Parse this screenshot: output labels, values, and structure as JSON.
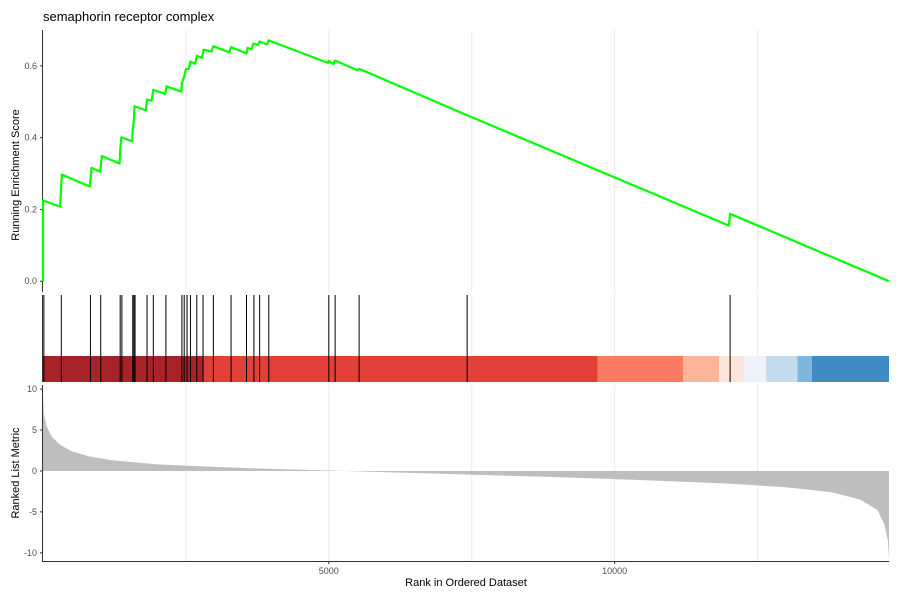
{
  "chart_data": {
    "type": "line",
    "title": "semaphorin receptor complex",
    "xlabel": "Rank in Ordered Dataset",
    "x_range": [
      0,
      14800
    ],
    "x_ticks": [
      5000,
      10000
    ],
    "x_tick_labels": [
      "5000",
      "10000"
    ],
    "x_grid": [
      2500,
      5000,
      7500,
      10000,
      12500
    ],
    "grid": true,
    "enrichment_panel": {
      "ylabel": "Running Enrichment Score",
      "ylim": [
        -0.03,
        0.7
      ],
      "y_ticks": [
        0.0,
        0.2,
        0.4,
        0.6
      ],
      "y_tick_labels": [
        "0.0",
        "0.2",
        "0.4",
        "0.6"
      ],
      "line_color": "#00ff00",
      "series": [
        {
          "values": [
            [
              0,
              0
            ],
            [
              0,
              0.225
            ],
            [
              300,
              0.208
            ],
            [
              330,
              0.297
            ],
            [
              820,
              0.264
            ],
            [
              850,
              0.316
            ],
            [
              1000,
              0.305
            ],
            [
              1030,
              0.349
            ],
            [
              1340,
              0.328
            ],
            [
              1350,
              0.363
            ],
            [
              1370,
              0.401
            ],
            [
              1560,
              0.39
            ],
            [
              1570,
              0.421
            ],
            [
              1590,
              0.448
            ],
            [
              1600,
              0.488
            ],
            [
              1800,
              0.476
            ],
            [
              1820,
              0.506
            ],
            [
              1900,
              0.503
            ],
            [
              1930,
              0.533
            ],
            [
              2140,
              0.522
            ],
            [
              2160,
              0.543
            ],
            [
              2420,
              0.528
            ],
            [
              2430,
              0.553
            ],
            [
              2470,
              0.57
            ],
            [
              2500,
              0.591
            ],
            [
              2550,
              0.592
            ],
            [
              2580,
              0.612
            ],
            [
              2660,
              0.606
            ],
            [
              2690,
              0.628
            ],
            [
              2780,
              0.622
            ],
            [
              2810,
              0.645
            ],
            [
              2950,
              0.64
            ],
            [
              2980,
              0.655
            ],
            [
              3260,
              0.638
            ],
            [
              3290,
              0.652
            ],
            [
              3560,
              0.635
            ],
            [
              3580,
              0.65
            ],
            [
              3650,
              0.646
            ],
            [
              3680,
              0.662
            ],
            [
              3760,
              0.658
            ],
            [
              3790,
              0.668
            ],
            [
              3920,
              0.66
            ],
            [
              3950,
              0.671
            ],
            [
              4990,
              0.608
            ],
            [
              5000,
              0.614
            ],
            [
              5080,
              0.605
            ],
            [
              5110,
              0.615
            ],
            [
              5500,
              0.588
            ],
            [
              5530,
              0.592
            ],
            [
              7400,
              0.464
            ],
            [
              12000,
              0.155
            ],
            [
              12020,
              0.188
            ],
            [
              14800,
              0.0
            ]
          ]
        }
      ]
    },
    "gene_hits": [
      15,
      320,
      830,
      1010,
      1350,
      1380,
      1570,
      1590,
      1610,
      1820,
      1930,
      2150,
      2430,
      2470,
      2520,
      2580,
      2690,
      2800,
      2980,
      3290,
      3560,
      3690,
      3790,
      3950,
      5000,
      5110,
      5530,
      7420,
      12020
    ],
    "color_bar": [
      {
        "from": 0,
        "to": 2800,
        "color": "#a82328"
      },
      {
        "from": 2800,
        "to": 9700,
        "color": "#e04038"
      },
      {
        "from": 9700,
        "to": 11200,
        "color": "#fb7b62"
      },
      {
        "from": 11200,
        "to": 11830,
        "color": "#fcb49a"
      },
      {
        "from": 11830,
        "to": 12260,
        "color": "#fde5d9"
      },
      {
        "from": 12260,
        "to": 12650,
        "color": "#eef3f9"
      },
      {
        "from": 12650,
        "to": 13200,
        "color": "#c4daed"
      },
      {
        "from": 13200,
        "to": 13450,
        "color": "#7fb6dc"
      },
      {
        "from": 13450,
        "to": 14800,
        "color": "#3f8bc4"
      }
    ],
    "ranked_metric_panel": {
      "ylabel": "Ranked List Metric",
      "ylim": [
        -11,
        10.5
      ],
      "y_ticks": [
        10,
        5,
        0,
        -5,
        -10
      ],
      "y_tick_labels": [
        "10",
        "5",
        "0",
        "-5",
        "-10"
      ],
      "fill_color": "#bebebe",
      "values": [
        [
          0,
          9.5
        ],
        [
          15,
          7.0
        ],
        [
          60,
          5.5
        ],
        [
          150,
          4.2
        ],
        [
          300,
          3.2
        ],
        [
          500,
          2.4
        ],
        [
          800,
          1.8
        ],
        [
          1200,
          1.3
        ],
        [
          2000,
          0.8
        ],
        [
          3000,
          0.5
        ],
        [
          4000,
          0.25
        ],
        [
          5000,
          0.05
        ],
        [
          6000,
          -0.15
        ],
        [
          7000,
          -0.35
        ],
        [
          8000,
          -0.55
        ],
        [
          9000,
          -0.75
        ],
        [
          10000,
          -1.0
        ],
        [
          11000,
          -1.25
        ],
        [
          12000,
          -1.55
        ],
        [
          13000,
          -2.0
        ],
        [
          13800,
          -2.6
        ],
        [
          14300,
          -3.5
        ],
        [
          14600,
          -4.8
        ],
        [
          14720,
          -6.5
        ],
        [
          14780,
          -8.5
        ],
        [
          14800,
          -10.8
        ]
      ]
    }
  }
}
